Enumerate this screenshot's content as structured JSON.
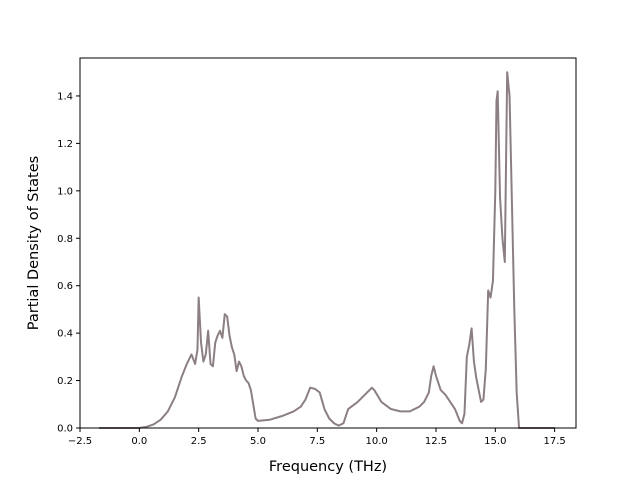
{
  "chart_data": {
    "type": "line",
    "title": "",
    "xlabel": "Frequency (THz)",
    "ylabel": "Partial Density of States",
    "xlim": [
      -2.5,
      18.4
    ],
    "ylim": [
      0.0,
      1.56
    ],
    "xticks": [
      -2.5,
      0.0,
      2.5,
      5.0,
      7.5,
      10.0,
      12.5,
      15.0,
      17.5
    ],
    "xtick_labels": [
      "−2.5",
      "0.0",
      "2.5",
      "5.0",
      "7.5",
      "10.0",
      "12.5",
      "15.0",
      "17.5"
    ],
    "yticks": [
      0.0,
      0.2,
      0.4,
      0.6,
      0.8,
      1.0,
      1.2,
      1.4
    ],
    "ytick_labels": [
      "0.0",
      "0.2",
      "0.4",
      "0.6",
      "0.8",
      "1.0",
      "1.2",
      "1.4"
    ],
    "grid": false,
    "series": [
      {
        "color": "#8c7f82",
        "x": [
          -1.7,
          -1.0,
          -0.5,
          0.0,
          0.3,
          0.6,
          0.9,
          1.2,
          1.5,
          1.8,
          2.0,
          2.2,
          2.35,
          2.45,
          2.5,
          2.6,
          2.7,
          2.8,
          2.9,
          3.0,
          3.1,
          3.2,
          3.3,
          3.4,
          3.5,
          3.6,
          3.7,
          3.8,
          3.9,
          4.0,
          4.1,
          4.2,
          4.3,
          4.4,
          4.5,
          4.6,
          4.7,
          4.8,
          4.9,
          5.0,
          5.5,
          6.0,
          6.5,
          6.8,
          7.0,
          7.2,
          7.4,
          7.6,
          7.8,
          8.0,
          8.2,
          8.4,
          8.6,
          8.7,
          8.8,
          9.2,
          9.6,
          9.8,
          9.9,
          10.2,
          10.6,
          11.0,
          11.4,
          11.8,
          12.0,
          12.2,
          12.3,
          12.4,
          12.5,
          12.7,
          12.9,
          13.1,
          13.3,
          13.5,
          13.6,
          13.7,
          13.8,
          13.9,
          14.0,
          14.1,
          14.2,
          14.3,
          14.4,
          14.5,
          14.6,
          14.7,
          14.8,
          14.9,
          15.0,
          15.05,
          15.1,
          15.2,
          15.3,
          15.4,
          15.5,
          15.6,
          15.7,
          15.8,
          15.9,
          16.0,
          16.5,
          17.0,
          17.5
        ],
        "y": [
          0.0,
          0.0,
          0.0,
          0.0,
          0.005,
          0.015,
          0.035,
          0.07,
          0.13,
          0.22,
          0.27,
          0.31,
          0.27,
          0.33,
          0.55,
          0.36,
          0.28,
          0.31,
          0.41,
          0.27,
          0.26,
          0.36,
          0.39,
          0.41,
          0.38,
          0.48,
          0.47,
          0.39,
          0.34,
          0.31,
          0.24,
          0.28,
          0.26,
          0.22,
          0.2,
          0.19,
          0.16,
          0.1,
          0.04,
          0.03,
          0.035,
          0.05,
          0.07,
          0.09,
          0.12,
          0.17,
          0.165,
          0.15,
          0.08,
          0.04,
          0.02,
          0.01,
          0.02,
          0.05,
          0.08,
          0.11,
          0.15,
          0.17,
          0.16,
          0.11,
          0.08,
          0.07,
          0.07,
          0.09,
          0.11,
          0.15,
          0.22,
          0.26,
          0.22,
          0.16,
          0.14,
          0.11,
          0.08,
          0.03,
          0.02,
          0.06,
          0.3,
          0.35,
          0.42,
          0.28,
          0.21,
          0.16,
          0.11,
          0.12,
          0.25,
          0.58,
          0.55,
          0.62,
          1.0,
          1.38,
          1.42,
          0.97,
          0.8,
          0.7,
          1.5,
          1.4,
          0.95,
          0.5,
          0.15,
          0.0,
          0.0,
          0.0,
          0.0
        ]
      }
    ]
  }
}
